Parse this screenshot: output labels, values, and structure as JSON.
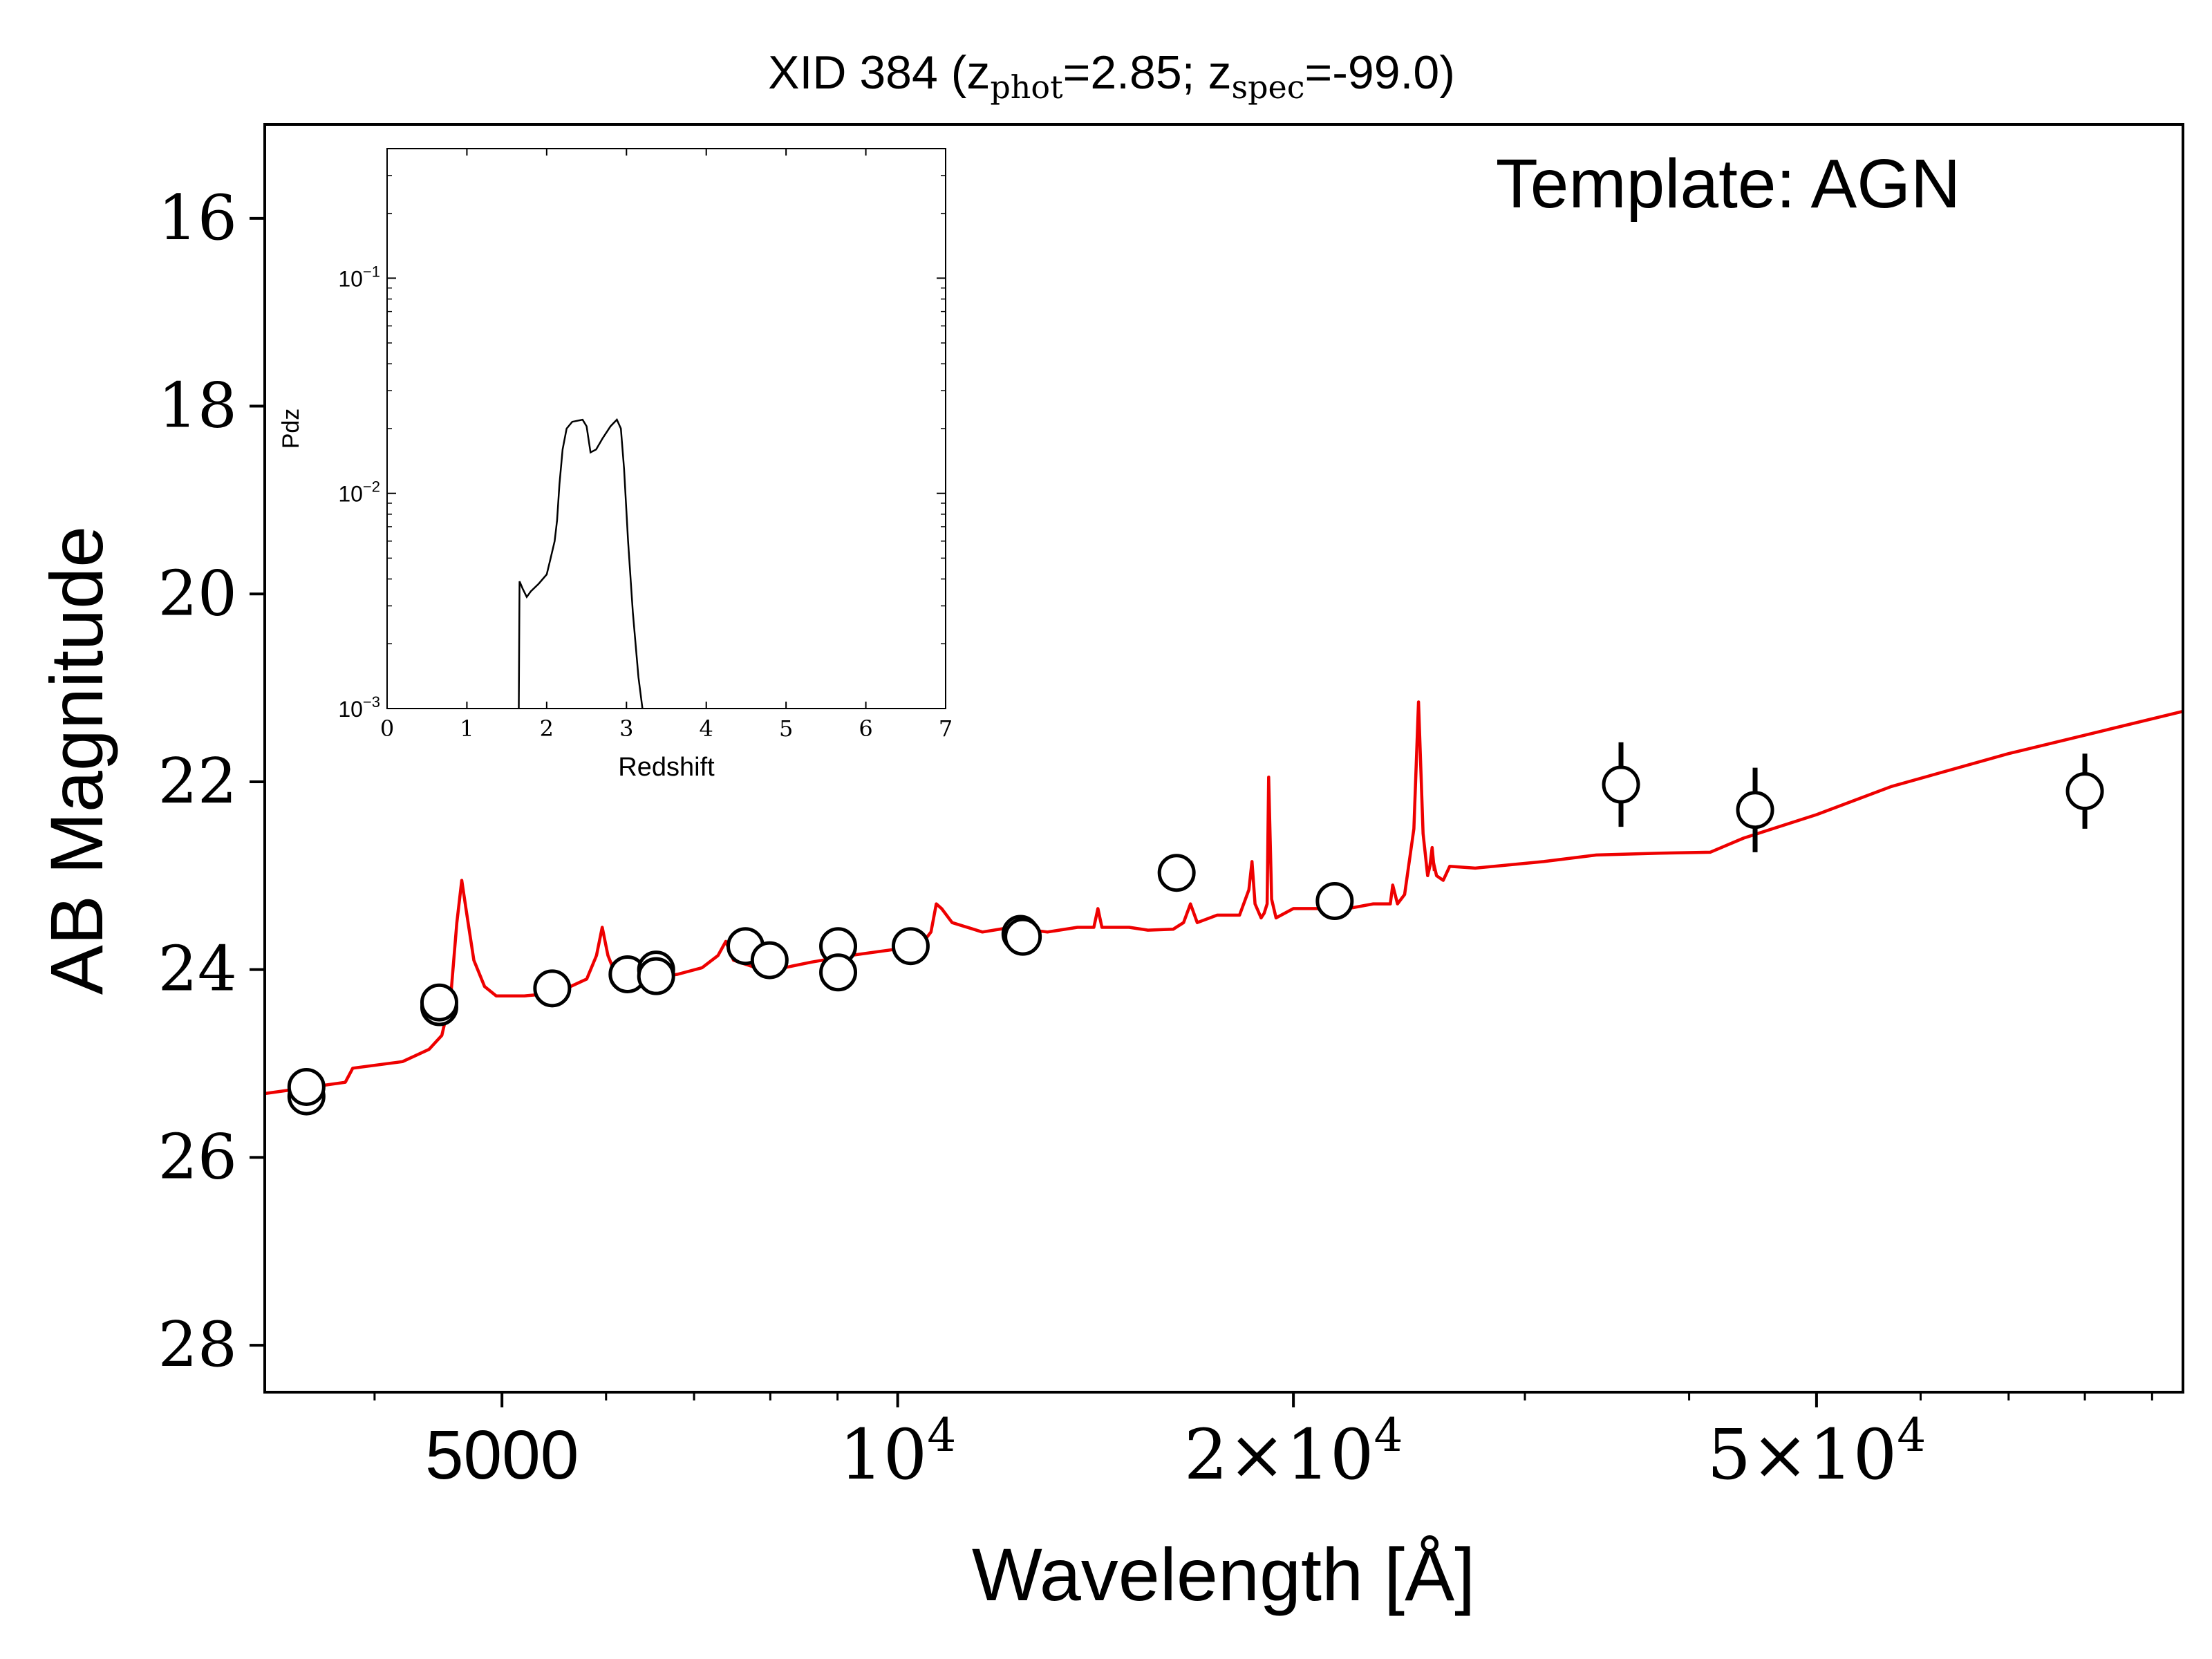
{
  "chart_data": [
    {
      "type": "scatter",
      "title": {
        "prefix": "XID 384 (",
        "z1": "z",
        "z1_sub": "phot",
        "z1_rest": "=2.85; ",
        "z2": "z",
        "z2_sub": "spec",
        "z2_rest": "=-99.0)"
      },
      "annotation": "Template: AGN",
      "xlabel": "Wavelength [Å]",
      "ylabel": "AB Magnitude",
      "xscale": "log",
      "xlim": [
        3300,
        95000
      ],
      "ylim": [
        28.5,
        15.0
      ],
      "y_inverted": true,
      "grid": false,
      "x_ticks": [
        {
          "value": 5000,
          "label": "5000"
        },
        {
          "value": 10000,
          "base": "10",
          "exp": "4"
        },
        {
          "value": 20000,
          "mant": "2×10",
          "exp": "4"
        },
        {
          "value": 50000,
          "mant": "5×10",
          "exp": "4"
        }
      ],
      "x_minor_ticks": [
        4000,
        6000,
        7000,
        8000,
        9000,
        30000,
        40000,
        60000,
        70000,
        80000,
        90000
      ],
      "y_ticks": [
        16,
        18,
        20,
        22,
        24,
        26,
        28
      ],
      "series": [
        {
          "kind": "photometry",
          "marker": "open-circle",
          "color": "#000000",
          "points": [
            {
              "x": 3550,
              "y": 25.35
            },
            {
              "x": 3550,
              "y": 25.25
            },
            {
              "x": 4480,
              "y": 24.4
            },
            {
              "x": 4480,
              "y": 24.35
            },
            {
              "x": 5460,
              "y": 24.2
            },
            {
              "x": 6230,
              "y": 24.05
            },
            {
              "x": 6550,
              "y": 24.0
            },
            {
              "x": 6550,
              "y": 24.07
            },
            {
              "x": 7660,
              "y": 23.75
            },
            {
              "x": 7990,
              "y": 23.9
            },
            {
              "x": 9010,
              "y": 23.75
            },
            {
              "x": 9010,
              "y": 24.03
            },
            {
              "x": 10230,
              "y": 23.75
            },
            {
              "x": 12400,
              "y": 23.62
            },
            {
              "x": 12450,
              "y": 23.65
            },
            {
              "x": 16300,
              "y": 22.97
            },
            {
              "x": 21500,
              "y": 23.27
            },
            {
              "x": 35500,
              "y": 22.03,
              "yerr": 0.45
            },
            {
              "x": 44900,
              "y": 22.3,
              "yerr": 0.45
            },
            {
              "x": 80000,
              "y": 22.1,
              "yerr": 0.4
            }
          ]
        },
        {
          "kind": "template",
          "color": "#ee0000",
          "points": [
            [
              3300,
              25.32
            ],
            [
              3800,
              25.2
            ],
            [
              3850,
              25.05
            ],
            [
              4200,
              24.98
            ],
            [
              4400,
              24.85
            ],
            [
              4500,
              24.7
            ],
            [
              4570,
              24.3
            ],
            [
              4620,
              23.5
            ],
            [
              4660,
              23.05
            ],
            [
              4700,
              23.4
            ],
            [
              4760,
              23.9
            ],
            [
              4850,
              24.18
            ],
            [
              4950,
              24.28
            ],
            [
              5200,
              24.28
            ],
            [
              5500,
              24.25
            ],
            [
              5800,
              24.1
            ],
            [
              5900,
              23.85
            ],
            [
              5960,
              23.55
            ],
            [
              6020,
              23.85
            ],
            [
              6100,
              24.05
            ],
            [
              6400,
              24.1
            ],
            [
              6800,
              24.05
            ],
            [
              7100,
              23.98
            ],
            [
              7300,
              23.85
            ],
            [
              7400,
              23.7
            ],
            [
              7500,
              23.9
            ],
            [
              7800,
              23.98
            ],
            [
              8200,
              23.98
            ],
            [
              8600,
              23.92
            ],
            [
              9200,
              23.85
            ],
            [
              10000,
              23.78
            ],
            [
              10400,
              23.75
            ],
            [
              10600,
              23.6
            ],
            [
              10700,
              23.3
            ],
            [
              10800,
              23.35
            ],
            [
              11000,
              23.5
            ],
            [
              11600,
              23.6
            ],
            [
              12200,
              23.55
            ],
            [
              13000,
              23.6
            ],
            [
              13700,
              23.55
            ],
            [
              14100,
              23.55
            ],
            [
              14200,
              23.35
            ],
            [
              14300,
              23.55
            ],
            [
              15000,
              23.55
            ],
            [
              15500,
              23.58
            ],
            [
              16200,
              23.57
            ],
            [
              16500,
              23.5
            ],
            [
              16700,
              23.3
            ],
            [
              16900,
              23.5
            ],
            [
              17500,
              23.42
            ],
            [
              18200,
              23.42
            ],
            [
              18500,
              23.15
            ],
            [
              18600,
              22.85
            ],
            [
              18700,
              23.3
            ],
            [
              18900,
              23.45
            ],
            [
              19000,
              23.4
            ],
            [
              19100,
              23.3
            ],
            [
              19150,
              21.95
            ],
            [
              19250,
              23.25
            ],
            [
              19400,
              23.45
            ],
            [
              20000,
              23.35
            ],
            [
              22000,
              23.35
            ],
            [
              23000,
              23.3
            ],
            [
              23700,
              23.3
            ],
            [
              23800,
              23.1
            ],
            [
              24000,
              23.3
            ],
            [
              24300,
              23.2
            ],
            [
              24700,
              22.5
            ],
            [
              24900,
              21.15
            ],
            [
              25100,
              22.55
            ],
            [
              25300,
              23.0
            ],
            [
              25500,
              22.8
            ],
            [
              25700,
              23.0
            ],
            [
              26000,
              23.05
            ],
            [
              26300,
              22.9
            ],
            [
              27500,
              22.92
            ],
            [
              31000,
              22.85
            ],
            [
              34000,
              22.78
            ],
            [
              38000,
              22.76
            ],
            [
              41500,
              22.75
            ],
            [
              44000,
              22.6
            ],
            [
              50000,
              22.35
            ],
            [
              57000,
              22.05
            ],
            [
              70000,
              21.7
            ],
            [
              95000,
              21.25
            ]
          ]
        },
        {
          "kind": "template-edge",
          "color": "#ee0000",
          "points": [
            [
              25400,
              22.9
            ],
            [
              25500,
              22.7
            ],
            [
              25600,
              22.95
            ]
          ]
        }
      ]
    },
    {
      "type": "line",
      "inset": true,
      "xlabel": "Redshift",
      "ylabel": "Pdz",
      "xlim": [
        0,
        7
      ],
      "ylim_log": [
        0.001,
        0.4
      ],
      "yscale": "log",
      "x_ticks": [
        0,
        1,
        2,
        3,
        4,
        5,
        6,
        7
      ],
      "y_ticks": [
        {
          "value": 0.1,
          "base": "10",
          "exp": "−1"
        },
        {
          "value": 0.01,
          "base": "10",
          "exp": "−2"
        },
        {
          "value": 0.001,
          "base": "10",
          "exp": "−3"
        }
      ],
      "color": "#000000",
      "points": [
        [
          1.65,
          0.001
        ],
        [
          1.66,
          0.0039
        ],
        [
          1.7,
          0.0036
        ],
        [
          1.75,
          0.0033
        ],
        [
          1.8,
          0.0035
        ],
        [
          1.9,
          0.0038
        ],
        [
          2.0,
          0.0042
        ],
        [
          2.05,
          0.005
        ],
        [
          2.1,
          0.006
        ],
        [
          2.13,
          0.0075
        ],
        [
          2.16,
          0.011
        ],
        [
          2.2,
          0.016
        ],
        [
          2.25,
          0.02
        ],
        [
          2.32,
          0.0215
        ],
        [
          2.45,
          0.022
        ],
        [
          2.5,
          0.0205
        ],
        [
          2.55,
          0.0155
        ],
        [
          2.62,
          0.016
        ],
        [
          2.7,
          0.018
        ],
        [
          2.8,
          0.0205
        ],
        [
          2.88,
          0.022
        ],
        [
          2.93,
          0.02
        ],
        [
          2.97,
          0.013
        ],
        [
          3.02,
          0.006
        ],
        [
          3.08,
          0.0028
        ],
        [
          3.15,
          0.0014
        ],
        [
          3.2,
          0.001
        ]
      ]
    }
  ]
}
